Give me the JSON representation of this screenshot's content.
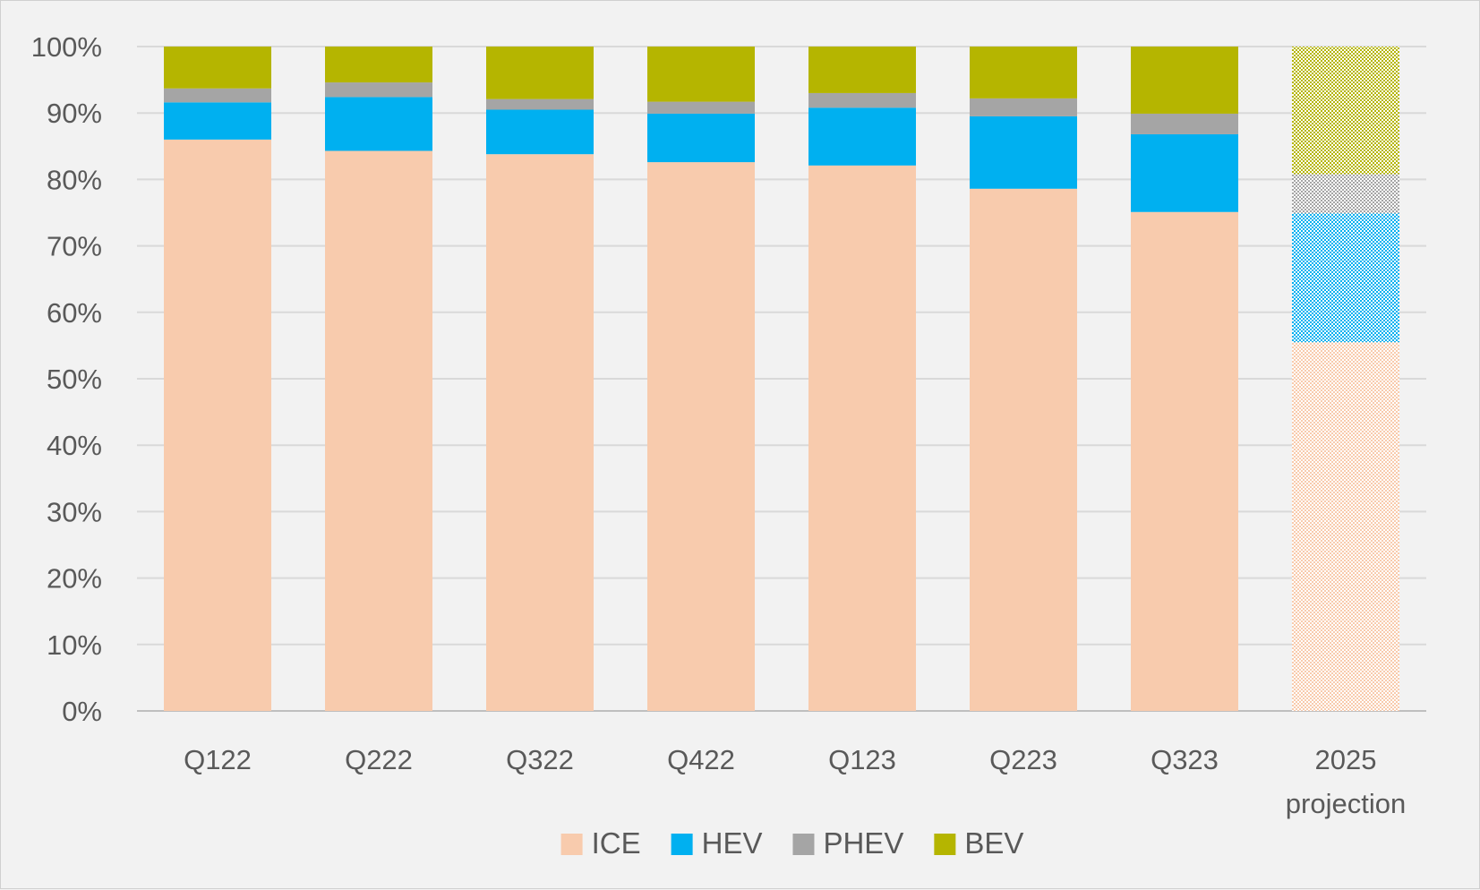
{
  "chart_data": {
    "type": "bar",
    "stacked": true,
    "percent_stacked": true,
    "categories": [
      "Q122",
      "Q222",
      "Q322",
      "Q422",
      "Q123",
      "Q223",
      "Q323",
      "2025 projection"
    ],
    "series": [
      {
        "name": "ICE",
        "color": "#f8cbad",
        "values": [
          86.0,
          84.3,
          83.8,
          82.6,
          82.1,
          78.6,
          75.1,
          55.5
        ]
      },
      {
        "name": "HEV",
        "color": "#00b0f0",
        "values": [
          5.6,
          8.1,
          6.7,
          7.3,
          8.7,
          10.9,
          11.7,
          19.4
        ]
      },
      {
        "name": "PHEV",
        "color": "#a5a5a5",
        "values": [
          2.1,
          2.2,
          1.6,
          1.8,
          2.2,
          2.7,
          3.1,
          5.9
        ]
      },
      {
        "name": "BEV",
        "color": "#b5b500",
        "values": [
          6.3,
          5.4,
          7.9,
          8.3,
          7.0,
          7.8,
          10.1,
          19.2
        ]
      }
    ],
    "projection_categories": [
      "2025 projection"
    ],
    "projection_style": "checkered-pattern",
    "yticks": [
      "0%",
      "10%",
      "20%",
      "30%",
      "40%",
      "50%",
      "60%",
      "70%",
      "80%",
      "90%",
      "100%"
    ],
    "ylim": [
      0,
      100
    ],
    "title": "",
    "xlabel": "",
    "ylabel": "",
    "grid": true,
    "legend_position": "bottom-center",
    "gridline_color": "#d9d9d9",
    "axis_line_color": "#bfbfbf"
  }
}
